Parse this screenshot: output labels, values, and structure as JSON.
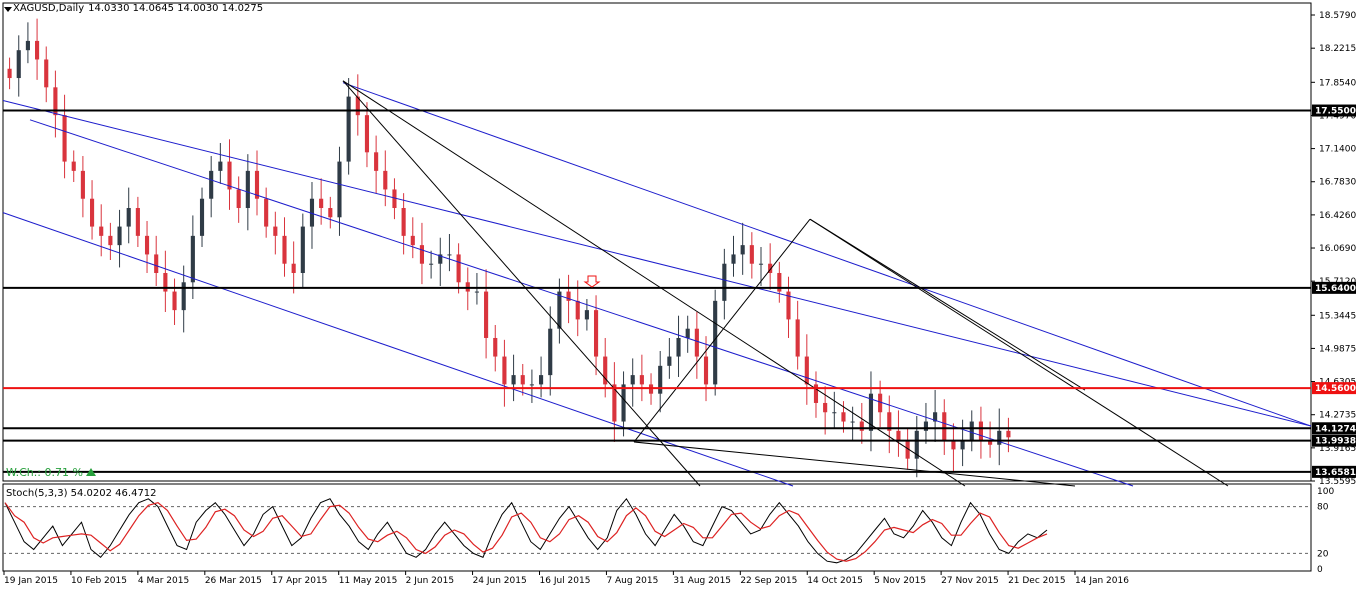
{
  "header": {
    "symbol": "XAGUSD,Daily",
    "ohlc": "14.0330 14.0645 14.0030 14.0275"
  },
  "indicator": {
    "watch_change": "W.Ch.: 0.71 %",
    "stoch_label": "Stoch(5,3,3) 54.0202 46.4712",
    "stoch_levels": [
      "100",
      "80",
      "20",
      "0"
    ]
  },
  "colors": {
    "up_candle": "#2f3b46",
    "down_candle": "#d9343d",
    "channel": "#1d1dcc",
    "resistance_red": "#ee1111",
    "stoch_main": "#000000",
    "stoch_signal": "#dd2222",
    "accent_green": "#27a03c"
  },
  "chart_data": {
    "type": "candlestick",
    "symbol": "XAGUSD",
    "timeframe": "Daily",
    "y_ticks": [
      "18.5790",
      "18.2215",
      "17.8540",
      "17.4970",
      "17.1400",
      "16.7830",
      "16.4260",
      "16.0690",
      "15.7120",
      "15.3445",
      "14.9875",
      "14.6305",
      "14.2735",
      "13.9165",
      "13.5595"
    ],
    "ylim": [
      13.5595,
      18.579
    ],
    "x_ticks": [
      "19 Jan 2015",
      "10 Feb 2015",
      "4 Mar 2015",
      "26 Mar 2015",
      "17 Apr 2015",
      "11 May 2015",
      "2 Jun 2015",
      "24 Jun 2015",
      "16 Jul 2015",
      "7 Aug 2015",
      "31 Aug 2015",
      "22 Sep 2015",
      "14 Oct 2015",
      "5 Nov 2015",
      "27 Nov 2015",
      "21 Dec 2015",
      "14 Jan 2016"
    ],
    "horizontal_levels": [
      {
        "value": 17.55,
        "label": "17.5500",
        "color": "black"
      },
      {
        "value": 15.64,
        "label": "15.6400",
        "color": "black"
      },
      {
        "value": 14.56,
        "label": "14.5600",
        "color": "red"
      },
      {
        "value": 14.1274,
        "label": "14.1274",
        "color": "black"
      },
      {
        "value": 13.9938,
        "label": "13.9938",
        "color": "black"
      },
      {
        "value": 13.6581,
        "label": "13.6581",
        "color": "black"
      }
    ],
    "closes_approx": [
      17.9,
      18.2,
      18.3,
      18.1,
      17.8,
      17.5,
      17.0,
      16.9,
      16.6,
      16.3,
      16.2,
      16.1,
      16.3,
      16.5,
      16.2,
      16.0,
      15.8,
      15.6,
      15.4,
      15.7,
      16.2,
      16.6,
      16.9,
      17.0,
      16.7,
      16.5,
      16.9,
      16.6,
      16.3,
      16.2,
      15.9,
      15.8,
      16.3,
      16.6,
      16.5,
      16.4,
      17.0,
      17.7,
      17.5,
      17.1,
      16.9,
      16.7,
      16.5,
      16.2,
      16.1,
      15.9,
      15.9,
      16.0,
      16.0,
      15.7,
      15.6,
      15.6,
      15.1,
      14.9,
      14.6,
      14.7,
      14.6,
      14.6,
      14.7,
      15.2,
      15.6,
      15.5,
      15.3,
      15.4,
      14.9,
      14.6,
      14.2,
      14.6,
      14.7,
      14.6,
      14.5,
      14.8,
      14.9,
      15.1,
      15.2,
      14.9,
      14.6,
      15.5,
      15.9,
      16.0,
      16.1,
      15.9,
      15.9,
      15.8,
      15.6,
      15.3,
      14.9,
      14.6,
      14.4,
      14.3,
      14.3,
      14.2,
      14.2,
      14.1,
      14.5,
      14.3,
      14.1,
      14.0,
      13.8,
      14.1,
      14.2,
      14.3,
      14.0,
      13.9,
      14.0,
      14.2,
      14.0,
      13.95,
      14.1,
      14.03
    ],
    "stoch_k_approx": [
      85,
      60,
      35,
      25,
      40,
      55,
      30,
      45,
      60,
      25,
      15,
      30,
      50,
      70,
      85,
      90,
      80,
      55,
      30,
      25,
      60,
      75,
      85,
      70,
      50,
      30,
      45,
      70,
      80,
      55,
      30,
      40,
      65,
      85,
      90,
      70,
      55,
      35,
      25,
      45,
      60,
      40,
      20,
      15,
      25,
      45,
      60,
      45,
      30,
      20,
      15,
      45,
      70,
      85,
      60,
      35,
      25,
      45,
      65,
      80,
      60,
      40,
      25,
      40,
      75,
      90,
      70,
      45,
      30,
      50,
      70,
      55,
      35,
      30,
      55,
      80,
      75,
      60,
      45,
      50,
      70,
      85,
      70,
      55,
      35,
      20,
      10,
      8,
      12,
      20,
      35,
      50,
      65,
      45,
      40,
      55,
      75,
      60,
      40,
      30,
      60,
      85,
      70,
      45,
      25,
      20,
      35,
      45,
      40,
      50
    ]
  }
}
